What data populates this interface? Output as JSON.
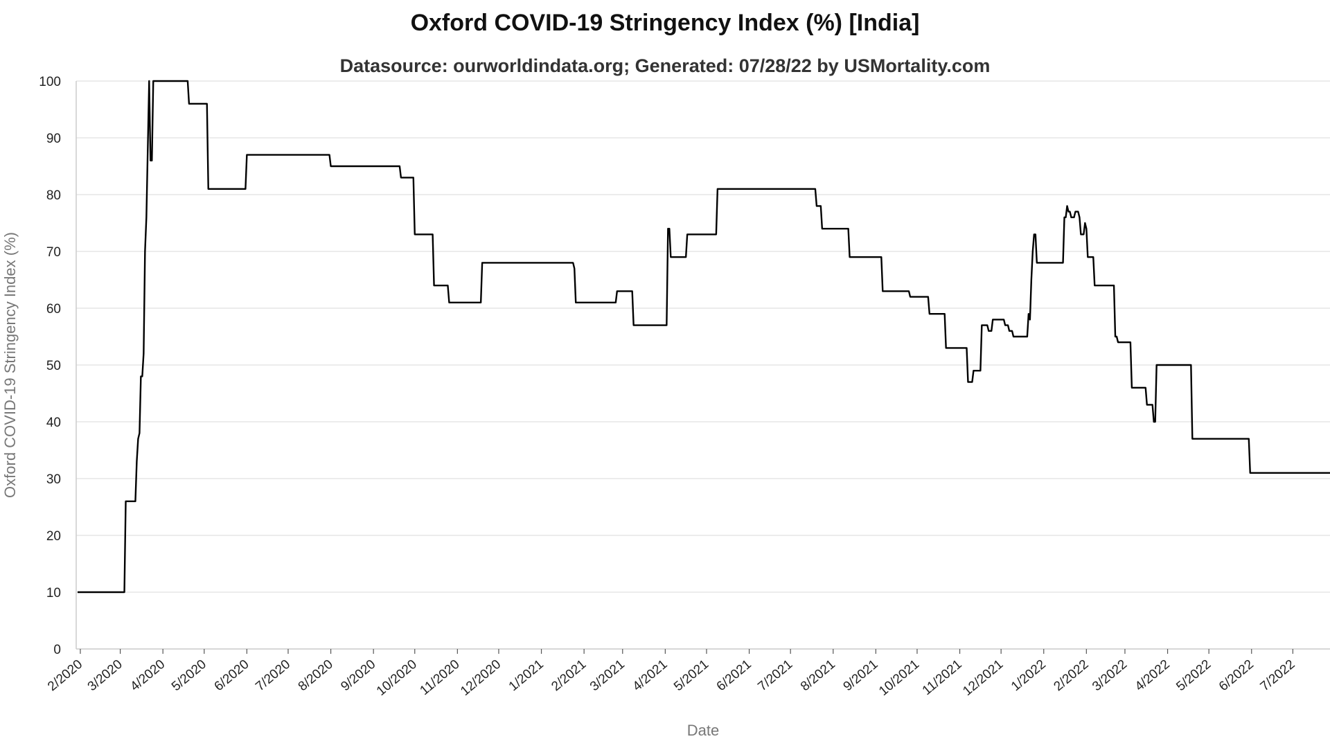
{
  "chart_data": {
    "type": "line",
    "title": "Oxford COVID-19 Stringency Index (%) [India]",
    "subtitle": "Datasource: ourworldindata.org; Generated: 07/28/22 by USMortality.com",
    "xlabel": "Date",
    "ylabel": "Oxford COVID-19 Stringency Index (%)",
    "ylim": [
      0,
      100
    ],
    "xlim": [
      "2020-01-29",
      "2022-07-28"
    ],
    "y_ticks": [
      0,
      10,
      20,
      30,
      40,
      50,
      60,
      70,
      80,
      90,
      100
    ],
    "x_ticks": [
      {
        "date": "2020-02-01",
        "label": "2/2020"
      },
      {
        "date": "2020-03-01",
        "label": "3/2020"
      },
      {
        "date": "2020-04-01",
        "label": "4/2020"
      },
      {
        "date": "2020-05-01",
        "label": "5/2020"
      },
      {
        "date": "2020-06-01",
        "label": "6/2020"
      },
      {
        "date": "2020-07-01",
        "label": "7/2020"
      },
      {
        "date": "2020-08-01",
        "label": "8/2020"
      },
      {
        "date": "2020-09-01",
        "label": "9/2020"
      },
      {
        "date": "2020-10-01",
        "label": "10/2020"
      },
      {
        "date": "2020-11-01",
        "label": "11/2020"
      },
      {
        "date": "2020-12-01",
        "label": "12/2020"
      },
      {
        "date": "2021-01-01",
        "label": "1/2021"
      },
      {
        "date": "2021-02-01",
        "label": "2/2021"
      },
      {
        "date": "2021-03-01",
        "label": "3/2021"
      },
      {
        "date": "2021-04-01",
        "label": "4/2021"
      },
      {
        "date": "2021-05-01",
        "label": "5/2021"
      },
      {
        "date": "2021-06-01",
        "label": "6/2021"
      },
      {
        "date": "2021-07-01",
        "label": "7/2021"
      },
      {
        "date": "2021-08-01",
        "label": "8/2021"
      },
      {
        "date": "2021-09-01",
        "label": "9/2021"
      },
      {
        "date": "2021-10-01",
        "label": "10/2021"
      },
      {
        "date": "2021-11-01",
        "label": "11/2021"
      },
      {
        "date": "2021-12-01",
        "label": "12/2021"
      },
      {
        "date": "2022-01-01",
        "label": "1/2022"
      },
      {
        "date": "2022-02-01",
        "label": "2/2022"
      },
      {
        "date": "2022-03-01",
        "label": "3/2022"
      },
      {
        "date": "2022-04-01",
        "label": "4/2022"
      },
      {
        "date": "2022-05-01",
        "label": "5/2022"
      },
      {
        "date": "2022-06-01",
        "label": "6/2022"
      },
      {
        "date": "2022-07-01",
        "label": "7/2022"
      }
    ],
    "grid": true,
    "legend": "none",
    "series": [
      {
        "color": "#000000",
        "points": [
          [
            "2020-01-30",
            10
          ],
          [
            "2020-03-04",
            10
          ],
          [
            "2020-03-05",
            26
          ],
          [
            "2020-03-12",
            26
          ],
          [
            "2020-03-13",
            33
          ],
          [
            "2020-03-14",
            37
          ],
          [
            "2020-03-15",
            38
          ],
          [
            "2020-03-16",
            48
          ],
          [
            "2020-03-17",
            48
          ],
          [
            "2020-03-18",
            52
          ],
          [
            "2020-03-19",
            70
          ],
          [
            "2020-03-20",
            76
          ],
          [
            "2020-03-21",
            88
          ],
          [
            "2020-03-22",
            100
          ],
          [
            "2020-03-23",
            86
          ],
          [
            "2020-03-24",
            86
          ],
          [
            "2020-03-25",
            100
          ],
          [
            "2020-04-19",
            100
          ],
          [
            "2020-04-20",
            96
          ],
          [
            "2020-05-03",
            96
          ],
          [
            "2020-05-04",
            81
          ],
          [
            "2020-05-31",
            81
          ],
          [
            "2020-06-01",
            87
          ],
          [
            "2020-07-31",
            87
          ],
          [
            "2020-08-01",
            85
          ],
          [
            "2020-09-20",
            85
          ],
          [
            "2020-09-21",
            83
          ],
          [
            "2020-09-30",
            83
          ],
          [
            "2020-10-01",
            73
          ],
          [
            "2020-10-14",
            73
          ],
          [
            "2020-10-15",
            64
          ],
          [
            "2020-10-25",
            64
          ],
          [
            "2020-10-26",
            61
          ],
          [
            "2020-11-18",
            61
          ],
          [
            "2020-11-19",
            68
          ],
          [
            "2021-01-24",
            68
          ],
          [
            "2021-01-25",
            67
          ],
          [
            "2021-01-26",
            61
          ],
          [
            "2021-02-24",
            61
          ],
          [
            "2021-02-25",
            63
          ],
          [
            "2021-03-08",
            63
          ],
          [
            "2021-03-09",
            57
          ],
          [
            "2021-04-02",
            57
          ],
          [
            "2021-04-03",
            74
          ],
          [
            "2021-04-04",
            74
          ],
          [
            "2021-04-05",
            69
          ],
          [
            "2021-04-16",
            69
          ],
          [
            "2021-04-17",
            73
          ],
          [
            "2021-05-08",
            73
          ],
          [
            "2021-05-09",
            81
          ],
          [
            "2021-07-19",
            81
          ],
          [
            "2021-07-20",
            78
          ],
          [
            "2021-07-23",
            78
          ],
          [
            "2021-07-24",
            74
          ],
          [
            "2021-08-12",
            74
          ],
          [
            "2021-08-13",
            69
          ],
          [
            "2021-09-05",
            69
          ],
          [
            "2021-09-06",
            63
          ],
          [
            "2021-09-25",
            63
          ],
          [
            "2021-09-26",
            62
          ],
          [
            "2021-10-09",
            62
          ],
          [
            "2021-10-10",
            59
          ],
          [
            "2021-10-21",
            59
          ],
          [
            "2021-10-22",
            53
          ],
          [
            "2021-11-06",
            53
          ],
          [
            "2021-11-07",
            47
          ],
          [
            "2021-11-10",
            47
          ],
          [
            "2021-11-11",
            49
          ],
          [
            "2021-11-16",
            49
          ],
          [
            "2021-11-17",
            57
          ],
          [
            "2021-11-21",
            57
          ],
          [
            "2021-11-22",
            56
          ],
          [
            "2021-11-24",
            56
          ],
          [
            "2021-11-25",
            58
          ],
          [
            "2021-12-03",
            58
          ],
          [
            "2021-12-04",
            57
          ],
          [
            "2021-12-06",
            57
          ],
          [
            "2021-12-07",
            56
          ],
          [
            "2021-12-09",
            56
          ],
          [
            "2021-12-10",
            55
          ],
          [
            "2021-12-20",
            55
          ],
          [
            "2021-12-21",
            59
          ],
          [
            "2021-12-22",
            58
          ],
          [
            "2021-12-23",
            65
          ],
          [
            "2021-12-24",
            70
          ],
          [
            "2021-12-25",
            73
          ],
          [
            "2021-12-26",
            73
          ],
          [
            "2021-12-27",
            68
          ],
          [
            "2022-01-15",
            68
          ],
          [
            "2022-01-16",
            76
          ],
          [
            "2022-01-17",
            76
          ],
          [
            "2022-01-18",
            78
          ],
          [
            "2022-01-19",
            77
          ],
          [
            "2022-01-20",
            77
          ],
          [
            "2022-01-21",
            76
          ],
          [
            "2022-01-23",
            76
          ],
          [
            "2022-01-24",
            77
          ],
          [
            "2022-01-26",
            77
          ],
          [
            "2022-01-27",
            76
          ],
          [
            "2022-01-28",
            73
          ],
          [
            "2022-01-30",
            73
          ],
          [
            "2022-01-31",
            75
          ],
          [
            "2022-02-01",
            74
          ],
          [
            "2022-02-02",
            69
          ],
          [
            "2022-02-06",
            69
          ],
          [
            "2022-02-07",
            64
          ],
          [
            "2022-02-21",
            64
          ],
          [
            "2022-02-22",
            55
          ],
          [
            "2022-02-23",
            55
          ],
          [
            "2022-02-24",
            54
          ],
          [
            "2022-03-05",
            54
          ],
          [
            "2022-03-06",
            46
          ],
          [
            "2022-03-16",
            46
          ],
          [
            "2022-03-17",
            43
          ],
          [
            "2022-03-21",
            43
          ],
          [
            "2022-03-22",
            40
          ],
          [
            "2022-03-23",
            40
          ],
          [
            "2022-03-24",
            50
          ],
          [
            "2022-04-18",
            50
          ],
          [
            "2022-04-19",
            37
          ],
          [
            "2022-05-30",
            37
          ],
          [
            "2022-05-31",
            31
          ],
          [
            "2022-07-28",
            31
          ]
        ]
      }
    ]
  }
}
